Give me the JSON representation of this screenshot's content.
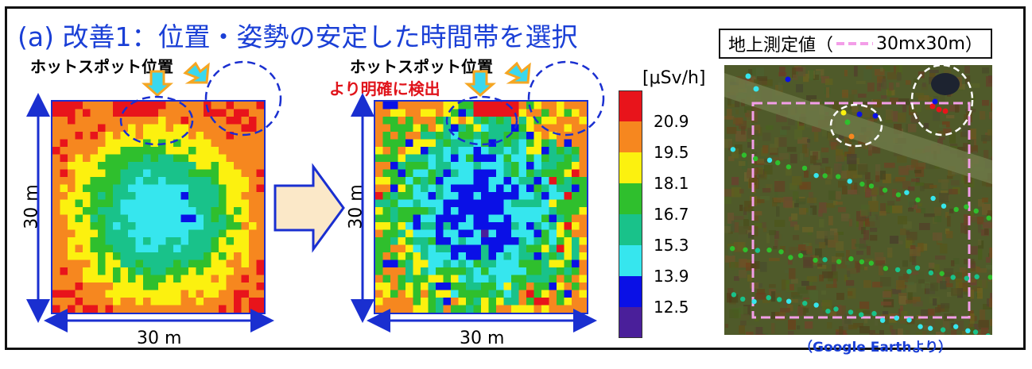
{
  "title": "(a) 改善1：位置・姿勢の安定した時間帯を選択",
  "left_map": {
    "hotspot_label": "ホットスポット位置",
    "x_dim": "30 m",
    "y_dim": "30 m"
  },
  "right_map": {
    "hotspot_label": "ホットスポット位置",
    "clearer_label": "より明確に検出",
    "x_dim": "30 m",
    "y_dim": "30 m"
  },
  "colorbar": {
    "unit": "[μSv/h]",
    "ticks": [
      "20.9",
      "19.5",
      "18.1",
      "16.7",
      "15.3",
      "13.9",
      "12.5"
    ],
    "colors": [
      "#e8141b",
      "#f6871f",
      "#fcf10f",
      "#2fbf2d",
      "#19c28a",
      "#36e6ee",
      "#0a10e6",
      "#4a1f9a"
    ]
  },
  "photo": {
    "title_main": "地上測定値",
    "title_open": "（",
    "title_legend": "30mx30m",
    "title_close": "）",
    "credit": "（Google Earthより）"
  },
  "colors": {
    "title_blue": "#1a3fd6",
    "frame_blue": "#1a2fd0",
    "arrow_orange": "#f5a623",
    "arrow_cyan": "#3ad8ef",
    "dash_pink": "#f39ee8"
  }
}
